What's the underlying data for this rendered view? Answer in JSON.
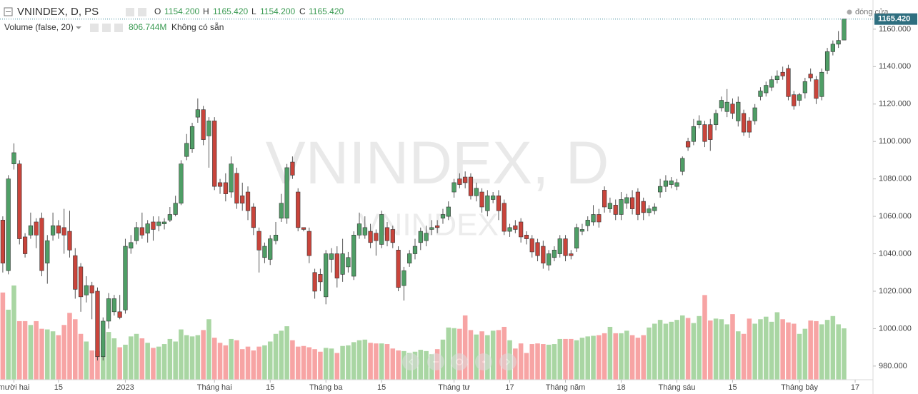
{
  "header": {
    "symbol": "VNINDEX, D, PS",
    "ohlc": [
      {
        "key": "O",
        "value": "1154.200"
      },
      {
        "key": "H",
        "value": "1165.420"
      },
      {
        "key": "L",
        "value": "1154.200"
      },
      {
        "key": "C",
        "value": "1165.420"
      }
    ],
    "volume_label": "Volume (false, 20)",
    "volume_value": "806.744M",
    "volume_note": "Không có sẵn",
    "status": "đóng cửa",
    "last_price_label": "1165.420",
    "watermark": "VNINDEX, D",
    "watermark_sub": "VNINDEX"
  },
  "chart_data": {
    "type": "candlestick",
    "up_color": "#4f9e66",
    "down_color": "#c9443b",
    "volume_up_color": "#a9d6a3",
    "volume_down_color": "#f7a4a4",
    "xlim": [
      -0.5,
      156.2
    ],
    "ylim": [
      972.7,
      1175.6
    ],
    "xticks": [
      {
        "value": 2,
        "label": "mười hai"
      },
      {
        "value": 10,
        "label": "15"
      },
      {
        "value": 22,
        "label": "2023"
      },
      {
        "value": 38,
        "label": "Tháng hai"
      },
      {
        "value": 48,
        "label": "15"
      },
      {
        "value": 58,
        "label": "Tháng ba"
      },
      {
        "value": 68,
        "label": "15"
      },
      {
        "value": 81,
        "label": "Tháng tư"
      },
      {
        "value": 91,
        "label": "17"
      },
      {
        "value": 101,
        "label": "Tháng năm"
      },
      {
        "value": 111,
        "label": "18"
      },
      {
        "value": 121,
        "label": "Tháng sáu"
      },
      {
        "value": 131,
        "label": "15"
      },
      {
        "value": 143,
        "label": "Tháng bảy"
      },
      {
        "value": 153,
        "label": "17"
      }
    ],
    "yticks": [
      {
        "value": 980,
        "label": "980.000"
      },
      {
        "value": 1000,
        "label": "1000.000"
      },
      {
        "value": 1020,
        "label": "1020.000"
      },
      {
        "value": 1040,
        "label": "1040.000"
      },
      {
        "value": 1060,
        "label": "1060.000"
      },
      {
        "value": 1080,
        "label": "1080.000"
      },
      {
        "value": 1100,
        "label": "1100.000"
      },
      {
        "value": 1120,
        "label": "1120.000"
      },
      {
        "value": 1140,
        "label": "1140.000"
      },
      {
        "value": 1160,
        "label": "1160.000"
      }
    ],
    "open": [
      1058,
      1031,
      1088,
      1088,
      1049,
      1050,
      1057,
      1059,
      1035,
      1050,
      1055,
      1054,
      1052,
      1039,
      1033,
      1018,
      1023,
      1020,
      985,
      1004,
      1009,
      1009,
      1010,
      1043,
      1047,
      1054,
      1051,
      1057,
      1055,
      1056,
      1058,
      1061,
      1067,
      1092,
      1096,
      1113,
      1117,
      1103,
      1111,
      1078,
      1078,
      1073,
      1083,
      1071,
      1073,
      1065,
      1052,
      1038,
      1037,
      1047,
      1059,
      1059,
      1089,
      1073,
      1054,
      1052,
      1030,
      1029,
      1017,
      1037,
      1040,
      1029,
      1033,
      1028,
      1050,
      1050,
      1052,
      1051,
      1045,
      1054,
      1053,
      1042,
      1023,
      1035,
      1040,
      1046,
      1047,
      1053,
      1055,
      1059,
      1060,
      1073,
      1080,
      1081,
      1081,
      1071,
      1073,
      1063,
      1069,
      1071,
      1067,
      1052,
      1055,
      1057,
      1050,
      1048,
      1046,
      1044,
      1034,
      1038,
      1040,
      1048,
      1040,
      1043,
      1052,
      1055,
      1057,
      1061,
      1074,
      1064,
      1066,
      1061,
      1067,
      1070,
      1073,
      1068,
      1062,
      1063,
      1073,
      1076,
      1077,
      1076,
      1084,
      1100,
      1100,
      1109,
      1109,
      1109,
      1109,
      1118,
      1116,
      1120,
      1111,
      1115,
      1111,
      1111,
      1124,
      1126,
      1129,
      1133,
      1137,
      1139,
      1125,
      1122,
      1126,
      1136,
      1133,
      1124,
      1138,
      1148,
      1152,
      1154.2
    ],
    "high": [
      1060,
      1082,
      1099,
      1090,
      1051,
      1062,
      1059,
      1062,
      1050,
      1062,
      1058,
      1064,
      1063,
      1043,
      1035,
      1028,
      1025,
      1022,
      1006,
      1019,
      1018,
      1018,
      1048,
      1050,
      1057,
      1062,
      1058,
      1060,
      1060,
      1059,
      1065,
      1071,
      1090,
      1104,
      1110,
      1123,
      1119,
      1113,
      1113,
      1080,
      1083,
      1092,
      1086,
      1078,
      1076,
      1067,
      1054,
      1046,
      1050,
      1057,
      1072,
      1088,
      1092,
      1075,
      1054,
      1054,
      1032,
      1032,
      1042,
      1043,
      1044,
      1048,
      1041,
      1052,
      1062,
      1060,
      1056,
      1053,
      1063,
      1057,
      1055,
      1044,
      1033,
      1042,
      1048,
      1054,
      1055,
      1058,
      1058,
      1064,
      1068,
      1080,
      1083,
      1084,
      1083,
      1078,
      1075,
      1074,
      1073,
      1074,
      1069,
      1056,
      1058,
      1059,
      1052,
      1050,
      1048,
      1047,
      1042,
      1044,
      1050,
      1050,
      1042,
      1056,
      1056,
      1060,
      1066,
      1064,
      1076,
      1070,
      1069,
      1073,
      1072,
      1074,
      1075,
      1070,
      1066,
      1067,
      1080,
      1082,
      1081,
      1080,
      1092,
      1102,
      1112,
      1114,
      1111,
      1112,
      1117,
      1124,
      1128,
      1123,
      1124,
      1117,
      1113,
      1120,
      1129,
      1132,
      1135,
      1138,
      1140,
      1141,
      1127,
      1126,
      1134,
      1139,
      1135,
      1139,
      1150,
      1154,
      1159,
      1165.42
    ],
    "low": [
      1030,
      1029,
      1085,
      1045,
      1038,
      1048,
      1043,
      1028,
      1024,
      1047,
      1048,
      1040,
      1038,
      1016,
      1009,
      1014,
      1005,
      983,
      983,
      1000,
      1007,
      1005,
      1008,
      1040,
      1045,
      1048,
      1046,
      1047,
      1052,
      1053,
      1057,
      1060,
      1066,
      1090,
      1094,
      1110,
      1098,
      1086,
      1074,
      1072,
      1068,
      1070,
      1064,
      1063,
      1058,
      1050,
      1030,
      1035,
      1034,
      1045,
      1057,
      1056,
      1080,
      1052,
      1052,
      1035,
      1016,
      1020,
      1013,
      1030,
      1022,
      1025,
      1030,
      1026,
      1048,
      1048,
      1043,
      1039,
      1043,
      1044,
      1043,
      1020,
      1015,
      1033,
      1037,
      1042,
      1044,
      1050,
      1051,
      1056,
      1058,
      1070,
      1075,
      1075,
      1069,
      1068,
      1062,
      1060,
      1067,
      1058,
      1050,
      1049,
      1051,
      1046,
      1045,
      1038,
      1036,
      1032,
      1031,
      1036,
      1038,
      1036,
      1037,
      1041,
      1050,
      1052,
      1055,
      1054,
      1062,
      1062,
      1058,
      1058,
      1064,
      1061,
      1058,
      1058,
      1060,
      1061,
      1070,
      1073,
      1075,
      1074,
      1082,
      1095,
      1098,
      1107,
      1097,
      1095,
      1106,
      1116,
      1113,
      1112,
      1108,
      1103,
      1102,
      1109,
      1122,
      1124,
      1127,
      1131,
      1133,
      1122,
      1117,
      1119,
      1123,
      1132,
      1120,
      1122,
      1136,
      1146,
      1150,
      1154.2
    ],
    "close": [
      1035,
      1080,
      1094,
      1048,
      1040,
      1055,
      1050,
      1031,
      1047,
      1055,
      1051,
      1050,
      1042,
      1021,
      1017,
      1023,
      1019,
      985,
      1004,
      1016,
      1016,
      1006,
      1044,
      1046,
      1054,
      1050,
      1056,
      1053,
      1057,
      1057,
      1061,
      1067,
      1088,
      1099,
      1108,
      1117,
      1101,
      1111,
      1076,
      1076,
      1072,
      1088,
      1067,
      1067,
      1063,
      1054,
      1042,
      1044,
      1048,
      1050,
      1067,
      1086,
      1082,
      1054,
      1053,
      1039,
      1020,
      1025,
      1040,
      1040,
      1027,
      1040,
      1038,
      1050,
      1056,
      1054,
      1046,
      1047,
      1061,
      1047,
      1046,
      1022,
      1031,
      1040,
      1044,
      1052,
      1051,
      1054,
      1054,
      1061,
      1065,
      1078,
      1077,
      1078,
      1071,
      1075,
      1065,
      1071,
      1071,
      1063,
      1052,
      1054,
      1053,
      1049,
      1048,
      1041,
      1039,
      1035,
      1040,
      1042,
      1048,
      1039,
      1039,
      1054,
      1053,
      1058,
      1061,
      1057,
      1065,
      1067,
      1061,
      1069,
      1070,
      1064,
      1061,
      1062,
      1064,
      1065,
      1076,
      1079,
      1079,
      1078,
      1091,
      1097,
      1108,
      1111,
      1100,
      1101,
      1115,
      1122,
      1121,
      1115,
      1121,
      1105,
      1105,
      1118,
      1127,
      1130,
      1133,
      1135,
      1135,
      1124,
      1119,
      1125,
      1132,
      1134,
      1123,
      1137,
      1148,
      1152,
      1154,
      1165.42
    ],
    "volume": [
      1370,
      1100,
      1480,
      920,
      920,
      860,
      920,
      800,
      790,
      760,
      700,
      860,
      1050,
      950,
      720,
      600,
      460,
      450,
      620,
      750,
      650,
      510,
      550,
      680,
      720,
      650,
      580,
      500,
      520,
      560,
      640,
      600,
      790,
      700,
      680,
      700,
      780,
      950,
      660,
      580,
      540,
      640,
      620,
      480,
      520,
      460,
      520,
      540,
      600,
      720,
      770,
      840,
      620,
      520,
      530,
      510,
      480,
      440,
      500,
      490,
      420,
      530,
      540,
      590,
      620,
      630,
      580,
      570,
      570,
      560,
      490,
      460,
      450,
      420,
      440,
      470,
      450,
      400,
      480,
      630,
      820,
      810,
      800,
      1010,
      780,
      710,
      760,
      700,
      770,
      780,
      830,
      620,
      490,
      570,
      420,
      560,
      570,
      560,
      550,
      560,
      640,
      640,
      640,
      620,
      660,
      680,
      690,
      700,
      730,
      830,
      730,
      730,
      770,
      700,
      660,
      700,
      820,
      880,
      940,
      880,
      910,
      940,
      1010,
      970,
      890,
      1000,
      1330,
      930,
      960,
      950,
      870,
      1030,
      760,
      720,
      960,
      880,
      950,
      990,
      910,
      1060,
      950,
      900,
      880,
      720,
      800,
      930,
      920,
      870,
      940,
      1000,
      870,
      806.744
    ]
  }
}
